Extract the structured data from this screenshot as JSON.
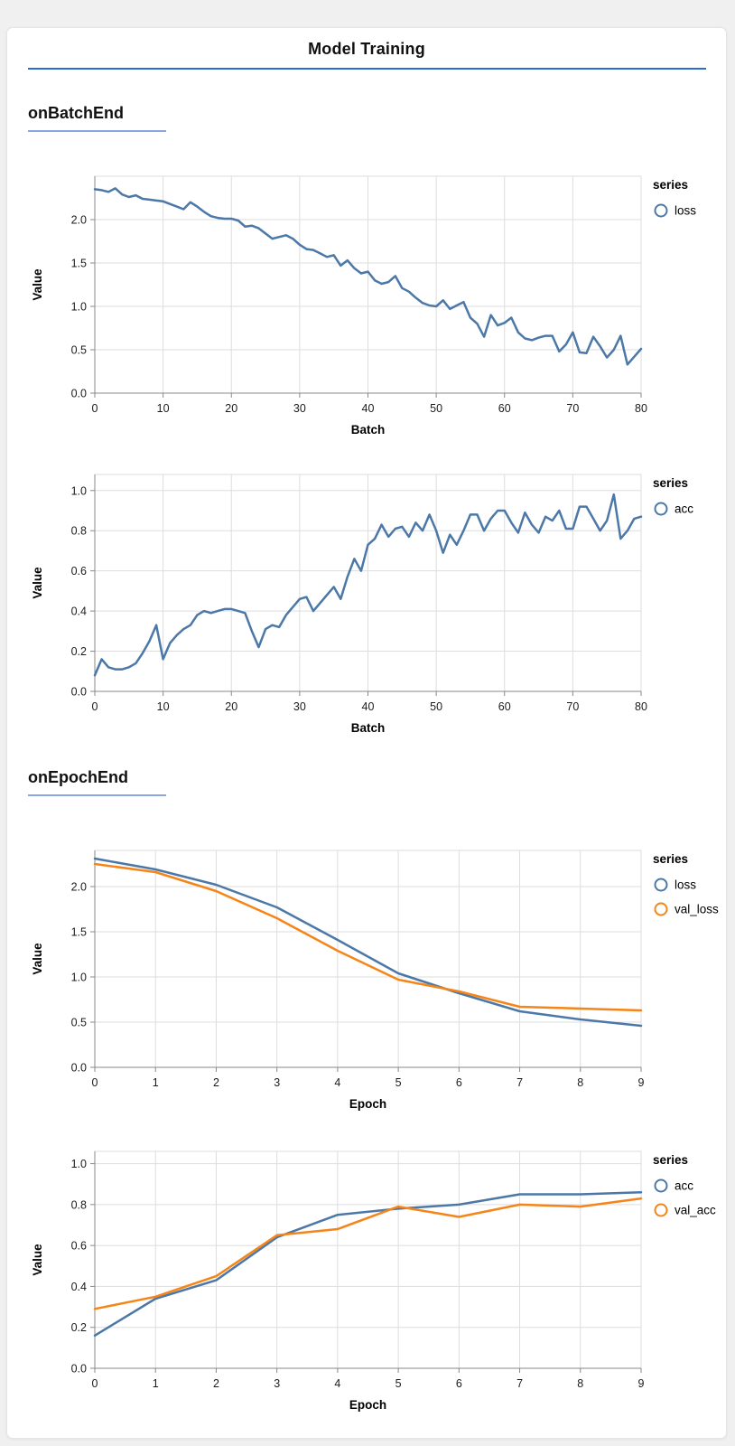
{
  "header": {
    "title": "Model Training"
  },
  "sections": [
    {
      "title": "onBatchEnd"
    },
    {
      "title": "onEpochEnd"
    }
  ],
  "colors": {
    "series_blue": "#4c78a8",
    "series_orange": "#f58518",
    "title_rule": "#2a6bd7",
    "section_rule": "#8aa7e4",
    "grid": "#dddddd",
    "axis": "#888888",
    "text": "#1b1b1b"
  },
  "chart_data": [
    {
      "type": "line",
      "section": "onBatchEnd",
      "xlabel": "Batch",
      "ylabel": "Value",
      "legend_title": "series",
      "legend_position": "top-right",
      "grid": true,
      "xlim": [
        0,
        80
      ],
      "ylim": [
        0,
        2.5
      ],
      "x_ticks": [
        0,
        10,
        20,
        30,
        40,
        50,
        60,
        70,
        80
      ],
      "y_ticks": [
        0.0,
        0.5,
        1.0,
        1.5,
        2.0
      ],
      "x_step": 1,
      "series": [
        {
          "name": "loss",
          "color_key": "series_blue",
          "values": [
            2.35,
            2.34,
            2.32,
            2.36,
            2.29,
            2.26,
            2.28,
            2.24,
            2.23,
            2.22,
            2.21,
            2.18,
            2.15,
            2.12,
            2.2,
            2.15,
            2.09,
            2.04,
            2.02,
            2.01,
            2.01,
            1.99,
            1.92,
            1.93,
            1.9,
            1.84,
            1.78,
            1.8,
            1.82,
            1.78,
            1.71,
            1.66,
            1.65,
            1.61,
            1.57,
            1.59,
            1.47,
            1.53,
            1.44,
            1.38,
            1.4,
            1.3,
            1.26,
            1.28,
            1.35,
            1.21,
            1.17,
            1.1,
            1.04,
            1.01,
            1.0,
            1.07,
            0.97,
            1.01,
            1.05,
            0.87,
            0.8,
            0.65,
            0.9,
            0.78,
            0.81,
            0.87,
            0.7,
            0.63,
            0.61,
            0.64,
            0.66,
            0.66,
            0.48,
            0.56,
            0.7,
            0.47,
            0.46,
            0.65,
            0.54,
            0.41,
            0.5,
            0.66,
            0.33,
            0.42,
            0.51
          ]
        }
      ]
    },
    {
      "type": "line",
      "section": "onBatchEnd",
      "xlabel": "Batch",
      "ylabel": "Value",
      "legend_title": "series",
      "legend_position": "top-right",
      "grid": true,
      "xlim": [
        0,
        80
      ],
      "ylim": [
        0,
        1.08
      ],
      "x_ticks": [
        0,
        10,
        20,
        30,
        40,
        50,
        60,
        70,
        80
      ],
      "y_ticks": [
        0.0,
        0.2,
        0.4,
        0.6,
        0.8,
        1.0
      ],
      "x_step": 1,
      "series": [
        {
          "name": "acc",
          "color_key": "series_blue",
          "values": [
            0.08,
            0.16,
            0.12,
            0.11,
            0.11,
            0.12,
            0.14,
            0.19,
            0.25,
            0.33,
            0.16,
            0.24,
            0.28,
            0.31,
            0.33,
            0.38,
            0.4,
            0.39,
            0.4,
            0.41,
            0.41,
            0.4,
            0.39,
            0.3,
            0.22,
            0.31,
            0.33,
            0.32,
            0.38,
            0.42,
            0.46,
            0.47,
            0.4,
            0.44,
            0.48,
            0.52,
            0.46,
            0.57,
            0.66,
            0.6,
            0.73,
            0.76,
            0.83,
            0.77,
            0.81,
            0.82,
            0.77,
            0.84,
            0.8,
            0.88,
            0.8,
            0.69,
            0.78,
            0.73,
            0.8,
            0.88,
            0.88,
            0.8,
            0.86,
            0.9,
            0.9,
            0.84,
            0.79,
            0.89,
            0.83,
            0.79,
            0.87,
            0.85,
            0.9,
            0.81,
            0.81,
            0.92,
            0.92,
            0.86,
            0.8,
            0.85,
            0.98,
            0.76,
            0.8,
            0.86,
            0.87
          ]
        }
      ]
    },
    {
      "type": "line",
      "section": "onEpochEnd",
      "xlabel": "Epoch",
      "ylabel": "Value",
      "legend_title": "series",
      "legend_position": "top-right",
      "grid": true,
      "xlim": [
        0,
        9
      ],
      "ylim": [
        0,
        2.4
      ],
      "x_ticks": [
        0,
        1,
        2,
        3,
        4,
        5,
        6,
        7,
        8,
        9
      ],
      "y_ticks": [
        0.0,
        0.5,
        1.0,
        1.5,
        2.0
      ],
      "x_step": 1,
      "series": [
        {
          "name": "loss",
          "color_key": "series_blue",
          "values": [
            2.31,
            2.19,
            2.02,
            1.77,
            1.41,
            1.04,
            0.82,
            0.62,
            0.53,
            0.46
          ]
        },
        {
          "name": "val_loss",
          "color_key": "series_orange",
          "values": [
            2.25,
            2.16,
            1.95,
            1.65,
            1.29,
            0.97,
            0.84,
            0.67,
            0.65,
            0.63
          ]
        }
      ]
    },
    {
      "type": "line",
      "section": "onEpochEnd",
      "xlabel": "Epoch",
      "ylabel": "Value",
      "legend_title": "series",
      "legend_position": "top-right",
      "grid": true,
      "xlim": [
        0,
        9
      ],
      "ylim": [
        0,
        1.06
      ],
      "x_ticks": [
        0,
        1,
        2,
        3,
        4,
        5,
        6,
        7,
        8,
        9
      ],
      "y_ticks": [
        0.0,
        0.2,
        0.4,
        0.6,
        0.8,
        1.0
      ],
      "x_step": 1,
      "series": [
        {
          "name": "acc",
          "color_key": "series_blue",
          "values": [
            0.16,
            0.34,
            0.43,
            0.64,
            0.75,
            0.78,
            0.8,
            0.85,
            0.85,
            0.86
          ]
        },
        {
          "name": "val_acc",
          "color_key": "series_orange",
          "values": [
            0.29,
            0.35,
            0.45,
            0.65,
            0.68,
            0.79,
            0.74,
            0.8,
            0.79,
            0.83
          ]
        }
      ]
    }
  ]
}
